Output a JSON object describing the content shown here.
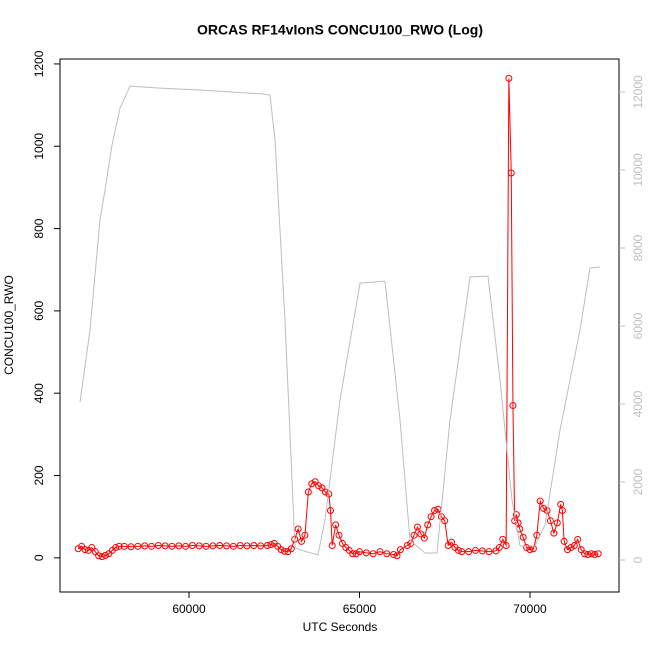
{
  "chart_data": {
    "type": "line",
    "title": "ORCAS RF14vIonS CONCU100_RWO (Log)",
    "x_label": "UTC Seconds",
    "y_label": "CONCU100_RWO",
    "xlim": [
      56217,
      72610
    ],
    "xticks": [
      60000,
      65000,
      70000
    ],
    "ylim": [
      -83,
      1212
    ],
    "yticks": [
      0,
      200,
      400,
      600,
      800,
      1000,
      1200
    ],
    "y2lim": [
      -820,
      12846
    ],
    "y2ticks": [
      0,
      2000,
      4000,
      6000,
      8000,
      10000,
      12000
    ],
    "series": [
      {
        "color": "#ff0000",
        "markers": true,
        "x": [
          56750,
          56850,
          56950,
          57050,
          57150,
          57250,
          57350,
          57450,
          57550,
          57650,
          57750,
          57850,
          57950,
          58100,
          58300,
          58500,
          58700,
          58900,
          59100,
          59300,
          59500,
          59700,
          59900,
          60100,
          60300,
          60500,
          60700,
          60900,
          61100,
          61300,
          61500,
          61700,
          61900,
          62100,
          62300,
          62400,
          62500,
          62600,
          62700,
          62800,
          62900,
          63000,
          63100,
          63200,
          63300,
          63400,
          63500,
          63600,
          63700,
          63800,
          63900,
          64000,
          64100,
          64150,
          64200,
          64300,
          64400,
          64500,
          64600,
          64700,
          64800,
          64900,
          65000,
          65200,
          65400,
          65600,
          65800,
          66000,
          66100,
          66200,
          66400,
          66500,
          66600,
          66700,
          66800,
          66900,
          67000,
          67100,
          67200,
          67300,
          67400,
          67500,
          67600,
          67700,
          67800,
          67900,
          68000,
          68200,
          68400,
          68600,
          68800,
          69000,
          69100,
          69200,
          69300,
          69380,
          69450,
          69500,
          69550,
          69600,
          69650,
          69700,
          69800,
          69900,
          70000,
          70100,
          70200,
          70300,
          70400,
          70500,
          70600,
          70700,
          70800,
          70900,
          70950,
          71000,
          71100,
          71200,
          71300,
          71400,
          71500,
          71600,
          71700,
          71800,
          71900,
          72000
        ],
        "values": [
          22,
          28,
          20,
          18,
          25,
          15,
          5,
          3,
          6,
          10,
          18,
          25,
          28,
          28,
          27,
          28,
          29,
          28,
          30,
          29,
          28,
          29,
          28,
          30,
          29,
          28,
          29,
          30,
          29,
          28,
          30,
          29,
          30,
          29,
          30,
          32,
          35,
          28,
          20,
          16,
          15,
          22,
          45,
          70,
          40,
          55,
          160,
          180,
          185,
          175,
          170,
          160,
          155,
          115,
          30,
          80,
          55,
          35,
          25,
          18,
          10,
          10,
          15,
          12,
          10,
          15,
          10,
          8,
          5,
          20,
          30,
          35,
          55,
          75,
          58,
          48,
          80,
          100,
          115,
          118,
          100,
          90,
          30,
          38,
          25,
          18,
          15,
          15,
          18,
          17,
          15,
          17,
          25,
          45,
          30,
          1165,
          935,
          370,
          90,
          105,
          85,
          70,
          50,
          25,
          20,
          22,
          55,
          138,
          120,
          115,
          90,
          60,
          85,
          130,
          115,
          40,
          20,
          25,
          30,
          45,
          20,
          10,
          8,
          10,
          8,
          10
        ]
      },
      {
        "color": "#bebebe",
        "axis": "y2",
        "x": [
          56804,
          57097,
          57390,
          57537,
          57742,
          57977,
          58270,
          59150,
          60323,
          62170,
          62375,
          62522,
          62815,
          63109,
          63255,
          63783,
          63988,
          64428,
          65015,
          65748,
          66188,
          66481,
          66921,
          67273,
          67654,
          68240,
          68768,
          69120,
          69472,
          69707,
          70147,
          70440,
          70880,
          71466,
          71760,
          72053
        ],
        "values": [
          4050,
          5900,
          8720,
          9490,
          10640,
          11590,
          12150,
          12100,
          12050,
          11950,
          11920,
          10770,
          6150,
          310,
          260,
          130,
          1030,
          4100,
          7100,
          7150,
          3590,
          510,
          180,
          180,
          3590,
          7260,
          7280,
          4620,
          1540,
          360,
          360,
          900,
          3330,
          5900,
          7490,
          7510
        ]
      }
    ]
  }
}
